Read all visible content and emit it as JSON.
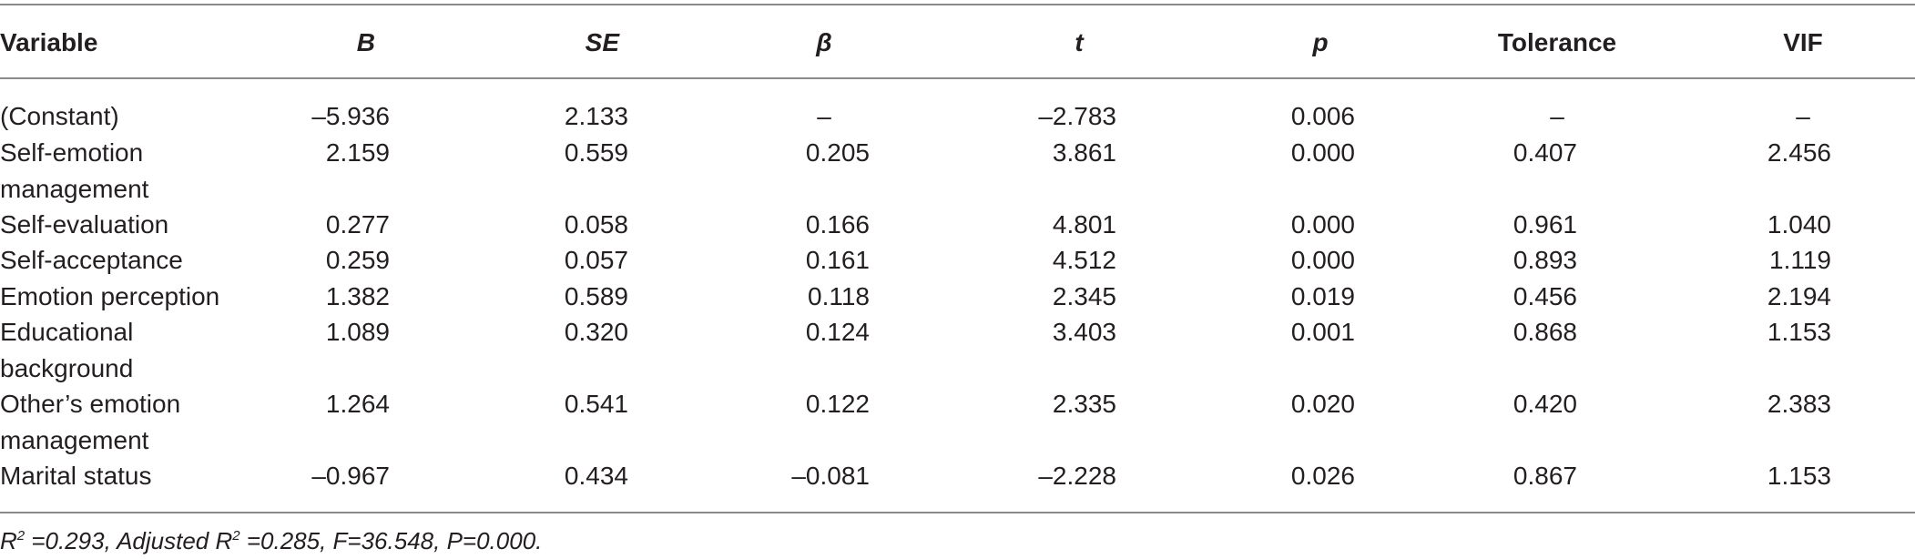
{
  "table": {
    "headers": {
      "variable": "Variable",
      "b": "B",
      "se": "SE",
      "beta": "β",
      "t": "t",
      "p": "p",
      "tolerance": "Tolerance",
      "vif": "VIF"
    },
    "rows": [
      {
        "variable": "(Constant)",
        "b": "–5.936",
        "se": "2.133",
        "beta": "–",
        "t": "–2.783",
        "p": "0.006",
        "tolerance": "–",
        "vif": "–"
      },
      {
        "variable": "Self-emotion management",
        "b": "2.159",
        "se": "0.559",
        "beta": "0.205",
        "t": "3.861",
        "p": "0.000",
        "tolerance": "0.407",
        "vif": "2.456"
      },
      {
        "variable": "Self-evaluation",
        "b": "0.277",
        "se": "0.058",
        "beta": "0.166",
        "t": "4.801",
        "p": "0.000",
        "tolerance": "0.961",
        "vif": "1.040"
      },
      {
        "variable": "Self-acceptance",
        "b": "0.259",
        "se": "0.057",
        "beta": "0.161",
        "t": "4.512",
        "p": "0.000",
        "tolerance": "0.893",
        "vif": "1.119"
      },
      {
        "variable": "Emotion perception",
        "b": "1.382",
        "se": "0.589",
        "beta": "0.118",
        "t": "2.345",
        "p": "0.019",
        "tolerance": "0.456",
        "vif": "2.194"
      },
      {
        "variable": "Educational background",
        "b": "1.089",
        "se": "0.320",
        "beta": "0.124",
        "t": "3.403",
        "p": "0.001",
        "tolerance": "0.868",
        "vif": "1.153"
      },
      {
        "variable": "Other’s emotion management",
        "b": "1.264",
        "se": "0.541",
        "beta": "0.122",
        "t": "2.335",
        "p": "0.020",
        "tolerance": "0.420",
        "vif": "2.383"
      },
      {
        "variable": "Marital status",
        "b": "–0.967",
        "se": "0.434",
        "beta": "–0.081",
        "t": "–2.228",
        "p": "0.026",
        "tolerance": "0.867",
        "vif": "1.153"
      }
    ]
  },
  "footnote": {
    "r2_label": "R",
    "r2_sup": "2",
    "r2_value": " =0.293, Adjusted ",
    "adj_label": "R",
    "adj_sup": "2",
    "adj_rest": " =0.285, F=36.548, P=0.000."
  }
}
